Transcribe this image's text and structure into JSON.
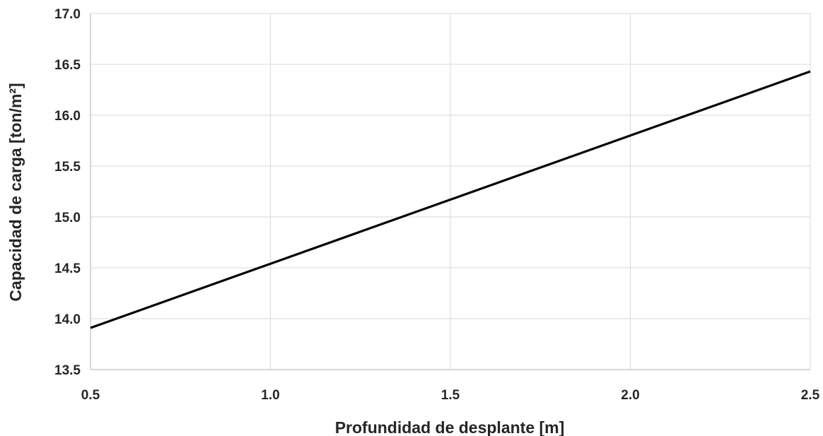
{
  "chart_data": {
    "type": "line",
    "title": "",
    "xlabel": "Profundidad de desplante [m]",
    "ylabel": "Capacidad de carga [ton/m²]",
    "xlim": [
      0.5,
      2.5
    ],
    "ylim": [
      13.5,
      17.0
    ],
    "x_ticks": [
      "0.5",
      "1.0",
      "1.5",
      "2.0",
      "2.5"
    ],
    "y_ticks": [
      "13.5",
      "14.0",
      "14.5",
      "15.0",
      "15.5",
      "16.0",
      "16.5",
      "17.0"
    ],
    "grid": true,
    "legend": "none",
    "series": [
      {
        "color": "#000000",
        "x": [
          0.5,
          1.0,
          1.5,
          2.0,
          2.5
        ],
        "values": [
          13.91,
          14.54,
          15.17,
          15.8,
          16.43
        ]
      }
    ]
  }
}
